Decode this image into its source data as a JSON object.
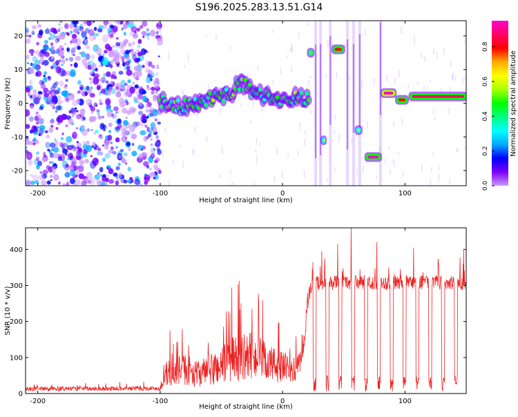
{
  "title": "S196.2025.283.13.51.G14",
  "chart_data": [
    {
      "type": "heatmap",
      "name": "spectrogram",
      "xlabel": "Height of straight line (km)",
      "ylabel": "Frequency (Hz)",
      "xlim": [
        -210,
        150
      ],
      "ylim": [
        -24.5,
        24.5
      ],
      "xticks": [
        -200,
        -100,
        0,
        100
      ],
      "yticks": [
        -20,
        -10,
        0,
        10,
        20
      ],
      "colorbar": {
        "label": "Normalized spectral amplitude",
        "range": [
          0,
          0.95
        ],
        "ticks": [
          0.0,
          0.2,
          0.4,
          0.6,
          0.8
        ],
        "tick_labels": [
          "0.0",
          "0.2",
          "0.4",
          "0.6",
          "0.8"
        ],
        "colors": [
          "#cc99ff",
          "#7a00ff",
          "#0000ff",
          "#00aaff",
          "#00ffff",
          "#00ff80",
          "#00ff00",
          "#aaff00",
          "#ffff00",
          "#ffaa00",
          "#ff0000",
          "#ff0066",
          "#ff00cc"
        ]
      },
      "noise_region_x": [
        -210,
        -100
      ],
      "signal_track": [
        {
          "x": -100,
          "y": 1
        },
        {
          "x": -90,
          "y": -1
        },
        {
          "x": -80,
          "y": -1
        },
        {
          "x": -70,
          "y": 0
        },
        {
          "x": -60,
          "y": 1
        },
        {
          "x": -50,
          "y": 2
        },
        {
          "x": -40,
          "y": 4
        },
        {
          "x": -35,
          "y": 6
        },
        {
          "x": -30,
          "y": 5
        },
        {
          "x": -20,
          "y": 3
        },
        {
          "x": -10,
          "y": 2
        },
        {
          "x": 0,
          "y": 1.5
        },
        {
          "x": 10,
          "y": 1.5
        },
        {
          "x": 22,
          "y": 1.5
        }
      ],
      "segments": [
        {
          "x0": 21,
          "x1": 25,
          "y": 15,
          "level": 0.7
        },
        {
          "x0": 32,
          "x1": 35,
          "y": -11,
          "level": 0.6
        },
        {
          "x0": 41,
          "x1": 50,
          "y": 16,
          "level": 0.8
        },
        {
          "x0": 60,
          "x1": 64,
          "y": -8,
          "level": 0.6
        },
        {
          "x0": 68,
          "x1": 80,
          "y": -16,
          "level": 0.92
        },
        {
          "x0": 81,
          "x1": 92,
          "y": 3,
          "level": 0.95
        },
        {
          "x0": 93,
          "x1": 102,
          "y": 1,
          "level": 0.8
        },
        {
          "x0": 104,
          "x1": 150,
          "y": 2,
          "level": 0.9
        }
      ],
      "vertical_streaks_x": [
        27,
        31,
        39,
        53,
        58,
        63,
        80
      ]
    },
    {
      "type": "line",
      "name": "snr",
      "xlabel": "Height of straight line (km)",
      "ylabel": "SNR (10 * v/v)",
      "xlim": [
        -210,
        150
      ],
      "ylim": [
        0,
        460
      ],
      "xticks": [
        -200,
        -100,
        0,
        100
      ],
      "yticks": [
        0,
        100,
        200,
        300,
        400
      ],
      "color": "#ee2222",
      "envelope": [
        {
          "x": -210,
          "base": 10,
          "amp": 12
        },
        {
          "x": -100,
          "base": 12,
          "amp": 12
        },
        {
          "x": -95,
          "base": 40,
          "amp": 70
        },
        {
          "x": -80,
          "base": 50,
          "amp": 90
        },
        {
          "x": -70,
          "base": 40,
          "amp": 70
        },
        {
          "x": -55,
          "base": 50,
          "amp": 100
        },
        {
          "x": -40,
          "base": 70,
          "amp": 130
        },
        {
          "x": -25,
          "base": 80,
          "amp": 130
        },
        {
          "x": -10,
          "base": 60,
          "amp": 110
        },
        {
          "x": 10,
          "base": 50,
          "amp": 70
        },
        {
          "x": 17,
          "base": 90,
          "amp": 60
        },
        {
          "x": 20,
          "base": 240,
          "amp": 60
        },
        {
          "x": 25,
          "base": 300,
          "amp": 40
        },
        {
          "x": 150,
          "base": 300,
          "amp": 40
        }
      ],
      "periodic_dips": {
        "x_start": 25,
        "period": 10.5,
        "depth_to": 5,
        "width": 2.5
      },
      "tall_spikes": [
        {
          "x": -92,
          "y": 175
        },
        {
          "x": -43,
          "y": 225
        },
        {
          "x": -25,
          "y": 235
        },
        {
          "x": -46,
          "y": 228
        },
        {
          "x": 56,
          "y": 460
        },
        {
          "x": 32,
          "y": 395
        },
        {
          "x": 45,
          "y": 415
        },
        {
          "x": 77,
          "y": 420
        },
        {
          "x": 107,
          "y": 405
        },
        {
          "x": 148,
          "y": 400
        }
      ]
    }
  ]
}
